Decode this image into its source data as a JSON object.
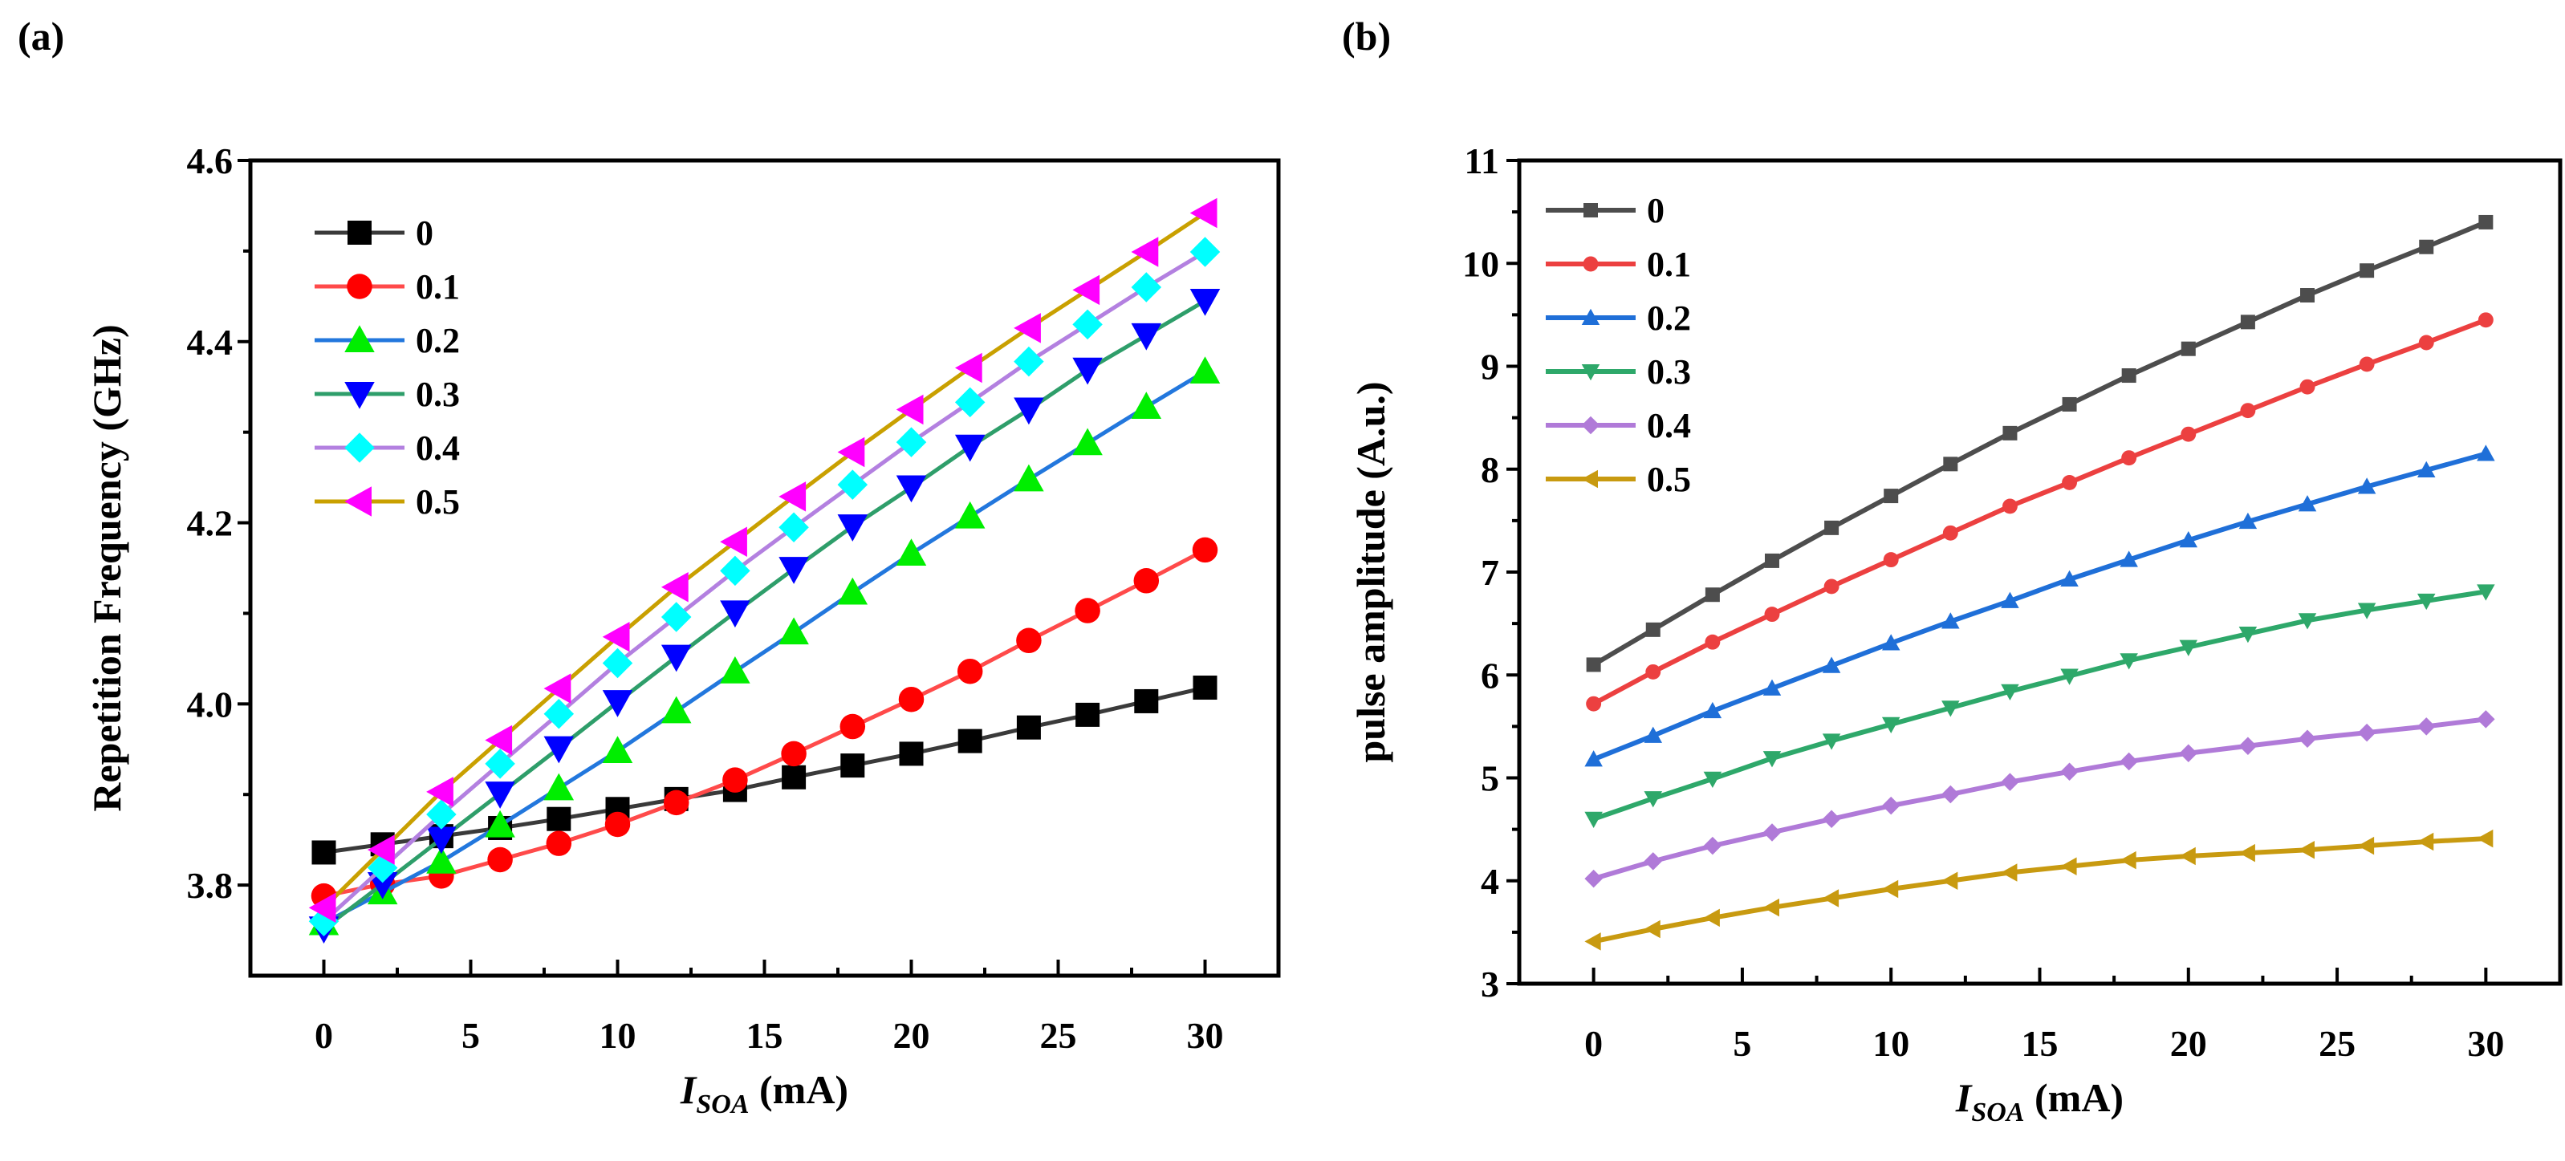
{
  "chart_data": [
    {
      "type": "line",
      "panel_label": "(a)",
      "title": "",
      "xlabel_main": "I",
      "xlabel_sub": "SOA",
      "xlabel_unit": " (mA)",
      "ylabel": "Repetition Frequency (GHz)",
      "xlim": [
        -2.5,
        32.5
      ],
      "ylim": [
        3.7,
        4.6
      ],
      "xticks": [
        0,
        5,
        10,
        15,
        20,
        25,
        30
      ],
      "xtick_labels": [
        "0",
        "5",
        "10",
        "15",
        "20",
        "25",
        "30"
      ],
      "yticks": [
        3.8,
        4.0,
        4.2,
        4.4,
        4.6
      ],
      "ytick_labels": [
        "3.8",
        "4.0",
        "4.2",
        "4.4",
        "4.6"
      ],
      "grid": false,
      "legend_position": "top-left",
      "x": [
        0,
        2,
        4,
        6,
        8,
        10,
        12,
        14,
        16,
        18,
        20,
        22,
        24,
        26,
        28,
        30
      ],
      "series": [
        {
          "name": "0",
          "line_color": "#3a3a3a",
          "marker_color": "#000000",
          "marker": "square",
          "values": [
            3.836,
            3.845,
            3.854,
            3.863,
            3.873,
            3.884,
            3.895,
            3.905,
            3.919,
            3.932,
            3.945,
            3.959,
            3.974,
            3.988,
            4.003,
            4.018
          ]
        },
        {
          "name": "0.1",
          "line_color": "#ff4a4a",
          "marker_color": "#ff0000",
          "marker": "circle",
          "values": [
            3.788,
            3.801,
            3.81,
            3.828,
            3.846,
            3.867,
            3.891,
            3.916,
            3.945,
            3.975,
            4.005,
            4.036,
            4.07,
            4.103,
            4.136,
            4.17
          ]
        },
        {
          "name": "0.2",
          "line_color": "#2277dd",
          "marker_color": "#00ee00",
          "marker": "triangle-up",
          "values": [
            3.758,
            3.792,
            3.826,
            3.866,
            3.907,
            3.948,
            3.992,
            4.036,
            4.079,
            4.123,
            4.166,
            4.207,
            4.248,
            4.288,
            4.328,
            4.367
          ]
        },
        {
          "name": "0.3",
          "line_color": "#2e9e6a",
          "marker_color": "#0000ff",
          "marker": "triangle-down",
          "values": [
            3.752,
            3.801,
            3.851,
            3.901,
            3.951,
            4.002,
            4.052,
            4.101,
            4.149,
            4.196,
            4.239,
            4.284,
            4.325,
            4.369,
            4.407,
            4.445
          ]
        },
        {
          "name": "0.4",
          "line_color": "#b380e0",
          "marker_color": "#00ffff",
          "marker": "diamond",
          "values": [
            3.76,
            3.819,
            3.878,
            3.934,
            3.989,
            4.045,
            4.096,
            4.147,
            4.195,
            4.242,
            4.289,
            4.333,
            4.378,
            4.419,
            4.46,
            4.499
          ]
        },
        {
          "name": "0.5",
          "line_color": "#c9a000",
          "marker_color": "#ff00ff",
          "marker": "triangle-left",
          "values": [
            3.775,
            3.839,
            3.903,
            3.96,
            4.017,
            4.074,
            4.129,
            4.179,
            4.229,
            4.278,
            4.325,
            4.371,
            4.415,
            4.457,
            4.499,
            4.542
          ]
        }
      ]
    },
    {
      "type": "line",
      "panel_label": "(b)",
      "title": "",
      "xlabel_main": "I",
      "xlabel_sub": "SOA",
      "xlabel_unit": " (mA)",
      "ylabel": "pulse amplitude (A.u.)",
      "xlim": [
        -2.5,
        32.5
      ],
      "ylim": [
        3,
        11
      ],
      "xticks": [
        0,
        5,
        10,
        15,
        20,
        25,
        30
      ],
      "xtick_labels": [
        "0",
        "5",
        "10",
        "15",
        "20",
        "25",
        "30"
      ],
      "yticks": [
        3,
        4,
        5,
        6,
        7,
        8,
        9,
        10,
        11
      ],
      "ytick_labels": [
        "3",
        "4",
        "5",
        "6",
        "7",
        "8",
        "9",
        "10",
        "11"
      ],
      "grid": false,
      "legend_position": "top-left",
      "x": [
        0,
        2,
        4,
        6,
        8,
        10,
        12,
        14,
        16,
        18,
        20,
        22,
        24,
        26,
        28,
        30
      ],
      "series": [
        {
          "name": "0",
          "line_color": "#4d4d4d",
          "marker_color": "#4d4d4d",
          "marker": "square",
          "values": [
            6.1,
            6.44,
            6.78,
            7.11,
            7.43,
            7.74,
            8.05,
            8.35,
            8.63,
            8.91,
            9.17,
            9.43,
            9.69,
            9.93,
            10.16,
            10.4
          ]
        },
        {
          "name": "0.1",
          "line_color": "#ec4040",
          "marker_color": "#ec4040",
          "marker": "circle",
          "values": [
            5.72,
            6.03,
            6.32,
            6.59,
            6.86,
            7.12,
            7.38,
            7.64,
            7.87,
            8.11,
            8.34,
            8.57,
            8.8,
            9.02,
            9.23,
            9.45
          ]
        },
        {
          "name": "0.2",
          "line_color": "#1f6fd8",
          "marker_color": "#1f6fd8",
          "marker": "triangle-up",
          "values": [
            5.18,
            5.41,
            5.65,
            5.87,
            6.09,
            6.31,
            6.52,
            6.72,
            6.93,
            7.12,
            7.31,
            7.49,
            7.66,
            7.83,
            7.99,
            8.15
          ]
        },
        {
          "name": "0.3",
          "line_color": "#2ea86a",
          "marker_color": "#2ea86a",
          "marker": "triangle-down",
          "values": [
            4.6,
            4.8,
            4.99,
            5.19,
            5.36,
            5.52,
            5.68,
            5.84,
            5.99,
            6.14,
            6.27,
            6.4,
            6.53,
            6.63,
            6.72,
            6.81
          ]
        },
        {
          "name": "0.4",
          "line_color": "#b07ad8",
          "marker_color": "#b07ad8",
          "marker": "diamond",
          "values": [
            4.02,
            4.19,
            4.34,
            4.47,
            4.6,
            4.73,
            4.84,
            4.96,
            5.06,
            5.16,
            5.24,
            5.31,
            5.38,
            5.44,
            5.5,
            5.57
          ]
        },
        {
          "name": "0.5",
          "line_color": "#c89a10",
          "marker_color": "#c89a10",
          "marker": "triangle-left",
          "values": [
            3.41,
            3.53,
            3.64,
            3.74,
            3.83,
            3.92,
            4.0,
            4.08,
            4.14,
            4.2,
            4.24,
            4.27,
            4.3,
            4.34,
            4.38,
            4.41
          ]
        }
      ]
    }
  ]
}
